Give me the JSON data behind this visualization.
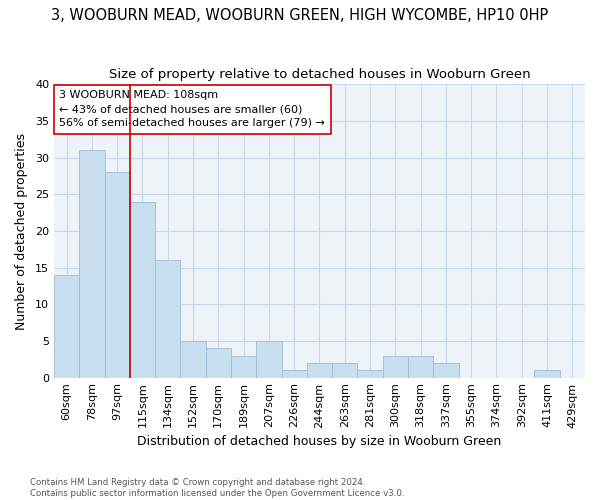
{
  "title": "3, WOOBURN MEAD, WOOBURN GREEN, HIGH WYCOMBE, HP10 0HP",
  "subtitle": "Size of property relative to detached houses in Wooburn Green",
  "xlabel": "Distribution of detached houses by size in Wooburn Green",
  "ylabel": "Number of detached properties",
  "categories": [
    "60sqm",
    "78sqm",
    "97sqm",
    "115sqm",
    "134sqm",
    "152sqm",
    "170sqm",
    "189sqm",
    "207sqm",
    "226sqm",
    "244sqm",
    "263sqm",
    "281sqm",
    "300sqm",
    "318sqm",
    "337sqm",
    "355sqm",
    "374sqm",
    "392sqm",
    "411sqm",
    "429sqm"
  ],
  "values": [
    14,
    31,
    28,
    24,
    16,
    5,
    4,
    3,
    5,
    1,
    2,
    2,
    1,
    3,
    3,
    2,
    0,
    0,
    0,
    1,
    0
  ],
  "bar_color": "#c8dff0",
  "bar_edge_color": "#9bbcd8",
  "vline_x_index": 2.5,
  "vline_color": "#cc0000",
  "annotation_text": "3 WOOBURN MEAD: 108sqm\n← 43% of detached houses are smaller (60)\n56% of semi-detached houses are larger (79) →",
  "annotation_box_color": "#ffffff",
  "annotation_box_edge_color": "#cc0000",
  "ylim": [
    0,
    40
  ],
  "yticks": [
    0,
    5,
    10,
    15,
    20,
    25,
    30,
    35,
    40
  ],
  "grid_color": "#c8d8ea",
  "bg_color": "#eef3f8",
  "title_fontsize": 10.5,
  "subtitle_fontsize": 9.5,
  "tick_fontsize": 8,
  "footnote": "Contains HM Land Registry data © Crown copyright and database right 2024.\nContains public sector information licensed under the Open Government Licence v3.0."
}
